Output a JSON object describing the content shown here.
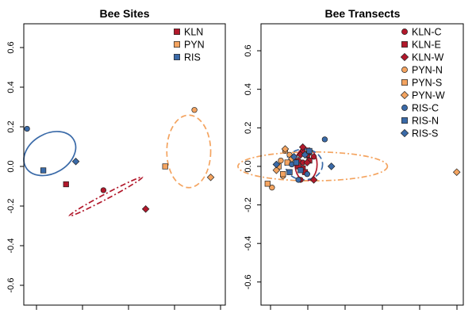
{
  "colors": {
    "KLN": "#b2182b",
    "PYN": "#f4a460",
    "RIS": "#3a6aa8"
  },
  "chart_data": [
    {
      "type": "scatter",
      "title": "Bee Sites",
      "xlabel": "",
      "ylabel": "",
      "xlim": [
        -0.62,
        0.62
      ],
      "ylim": [
        -0.7,
        0.72
      ],
      "yticks": [
        -0.6,
        -0.4,
        -0.2,
        0.0,
        0.2,
        0.4,
        0.6
      ],
      "ytick_labels": [
        "-0.6",
        "-0.4",
        "-0.2",
        "0.0",
        "0.2",
        "0.4",
        "0.6"
      ],
      "legend_position": "top-right",
      "legend": [
        {
          "label": "KLN",
          "group": "KLN",
          "marker": "square"
        },
        {
          "label": "PYN",
          "group": "PYN",
          "marker": "square"
        },
        {
          "label": "RIS",
          "group": "RIS",
          "marker": "square"
        }
      ],
      "series": [
        {
          "name": "KLN",
          "group": "KLN",
          "x": [
            -0.36,
            -0.13,
            0.13
          ],
          "y": [
            -0.09,
            -0.12,
            -0.215
          ],
          "markers": [
            "square",
            "circle",
            "diamond"
          ]
        },
        {
          "name": "PYN",
          "group": "PYN",
          "x": [
            0.25,
            0.43,
            0.53
          ],
          "y": [
            0.0,
            0.285,
            -0.055
          ],
          "markers": [
            "square",
            "circle",
            "diamond"
          ]
        },
        {
          "name": "RIS",
          "group": "RIS",
          "x": [
            -0.6,
            -0.5,
            -0.3
          ],
          "y": [
            0.19,
            -0.02,
            0.025
          ],
          "markers": [
            "circle",
            "square",
            "diamond"
          ]
        }
      ],
      "ellipses": [
        {
          "group": "KLN",
          "cx": -0.115,
          "cy": -0.152,
          "rx": 0.255,
          "ry": 0.013,
          "angle_deg": -28,
          "style": "dashdot"
        },
        {
          "group": "PYN",
          "cx": 0.395,
          "cy": 0.076,
          "rx": 0.135,
          "ry": 0.183,
          "angle_deg": 0,
          "style": "dashed"
        },
        {
          "group": "RIS",
          "cx": -0.46,
          "cy": 0.065,
          "rx": 0.17,
          "ry": 0.1,
          "angle_deg": -30,
          "style": "solid"
        }
      ]
    },
    {
      "type": "scatter",
      "title": "Bee Transects",
      "xlabel": "",
      "ylabel": "",
      "xlim": [
        -0.19,
        0.73
      ],
      "ylim": [
        -0.72,
        0.74
      ],
      "yticks": [
        -0.6,
        -0.4,
        -0.2,
        0.0,
        0.2,
        0.4,
        0.6
      ],
      "ytick_labels": [
        "-0.6",
        "-0.4",
        "-0.2",
        "0.0",
        "0.2",
        "0.4",
        "0.6"
      ],
      "legend_position": "top-right",
      "legend": [
        {
          "label": "KLN-C",
          "group": "KLN",
          "marker": "circle"
        },
        {
          "label": "KLN-E",
          "group": "KLN",
          "marker": "square"
        },
        {
          "label": "KLN-W",
          "group": "KLN",
          "marker": "diamond"
        },
        {
          "label": "PYN-N",
          "group": "PYN",
          "marker": "circle"
        },
        {
          "label": "PYN-S",
          "group": "PYN",
          "marker": "square"
        },
        {
          "label": "PYN-W",
          "group": "PYN",
          "marker": "diamond"
        },
        {
          "label": "RIS-C",
          "group": "RIS",
          "marker": "circle"
        },
        {
          "label": "RIS-N",
          "group": "RIS",
          "marker": "square"
        },
        {
          "label": "RIS-S",
          "group": "RIS",
          "marker": "diamond"
        }
      ],
      "series": [
        {
          "name": "KLN-C",
          "group": "KLN",
          "marker": "circle",
          "x": [
            -0.01,
            0.0,
            0.02,
            0.05,
            0.03,
            0.0
          ],
          "y": [
            -0.07,
            0.02,
            -0.04,
            0.05,
            0.07,
            0.08
          ]
        },
        {
          "name": "KLN-E",
          "group": "KLN",
          "marker": "square",
          "x": [
            0.0,
            0.03,
            0.02,
            -0.02,
            0.01
          ],
          "y": [
            -0.01,
            0.03,
            0.06,
            0.0,
            -0.03
          ]
        },
        {
          "name": "KLN-W",
          "group": "KLN",
          "marker": "diamond",
          "x": [
            0.0,
            0.05,
            0.02,
            -0.01,
            0.03,
            -0.02
          ],
          "y": [
            0.1,
            -0.07,
            0.02,
            0.06,
            0.08,
            0.03
          ]
        },
        {
          "name": "PYN-N",
          "group": "PYN",
          "marker": "circle",
          "x": [
            -0.14,
            -0.08,
            -0.1,
            -0.06,
            -0.09
          ],
          "y": [
            -0.11,
            0.08,
            0.03,
            0.06,
            -0.05
          ]
        },
        {
          "name": "PYN-S",
          "group": "PYN",
          "marker": "square",
          "x": [
            -0.16,
            -0.11,
            -0.07,
            -0.09
          ],
          "y": [
            -0.09,
            0.0,
            0.02,
            -0.04
          ]
        },
        {
          "name": "PYN-W",
          "group": "PYN",
          "marker": "diamond",
          "x": [
            0.7,
            -0.08,
            -0.05,
            -0.12
          ],
          "y": [
            -0.03,
            0.09,
            0.04,
            -0.02
          ]
        },
        {
          "name": "RIS-C",
          "group": "RIS",
          "marker": "circle",
          "x": [
            0.1,
            -0.02,
            -0.05,
            0.02
          ],
          "y": [
            0.14,
            -0.07,
            0.01,
            -0.04
          ]
        },
        {
          "name": "RIS-N",
          "group": "RIS",
          "marker": "square",
          "x": [
            -0.03,
            0.03,
            -0.06,
            -0.01
          ],
          "y": [
            0.02,
            0.08,
            -0.03,
            -0.02
          ]
        },
        {
          "name": "RIS-S",
          "group": "RIS",
          "marker": "diamond",
          "x": [
            0.13,
            -0.12,
            -0.04,
            0.01
          ],
          "y": [
            0.0,
            0.01,
            0.05,
            0.06
          ]
        }
      ],
      "ellipses": [
        {
          "group": "KLN",
          "cx": 0.015,
          "cy": 0.01,
          "rx": 0.05,
          "ry": 0.085,
          "angle_deg": 0,
          "style": "solid"
        },
        {
          "group": "PYN",
          "cx": 0.045,
          "cy": 0.0,
          "rx": 0.34,
          "ry": 0.075,
          "angle_deg": 0,
          "style": "dashdot"
        },
        {
          "group": "RIS",
          "cx": 0.005,
          "cy": 0.01,
          "rx": 0.085,
          "ry": 0.08,
          "angle_deg": 0,
          "style": "dashed"
        }
      ]
    }
  ]
}
